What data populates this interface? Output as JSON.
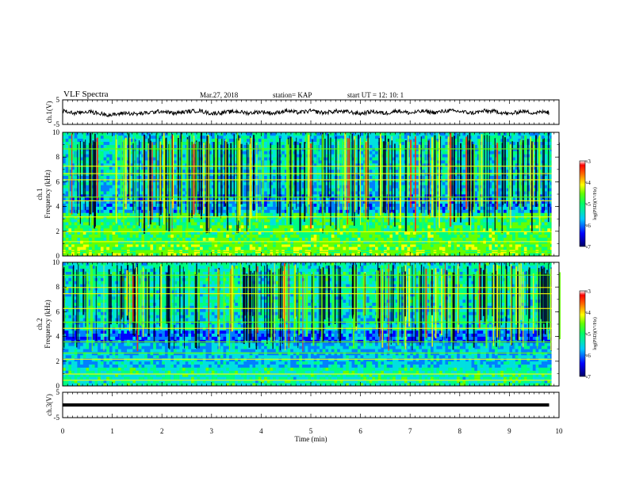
{
  "header": {
    "title": "VLF Spectra",
    "date": "Mar.27, 2018",
    "station": "station= KAP",
    "start": "start  UT =   12: 10: 1"
  },
  "chart_data": [
    {
      "type": "line",
      "ylabel": "ch.1(V)",
      "ylim": [
        -5,
        5
      ],
      "yticks": [
        5,
        -5
      ],
      "xlim": [
        0,
        10
      ],
      "series": [
        {
          "x": [
            0.0,
            0.25,
            0.5,
            0.75,
            1.0,
            1.25,
            1.5,
            1.75,
            2.0,
            2.25,
            2.5,
            2.75,
            3.0,
            3.25,
            3.5,
            3.75,
            4.0,
            4.25,
            4.5,
            4.75,
            5.0,
            5.25,
            5.5,
            5.75,
            6.0,
            6.25,
            6.5,
            6.75,
            7.0,
            7.25,
            7.5,
            7.75,
            8.0,
            8.25,
            8.5,
            8.75,
            9.0,
            9.25,
            9.5,
            9.75,
            9.8
          ],
          "values": [
            0.5,
            -0.5,
            0.3,
            -0.6,
            -1.2,
            -0.3,
            -0.8,
            -0.2,
            0.4,
            -0.5,
            0.2,
            0.6,
            -0.6,
            -0.1,
            0.3,
            -0.4,
            0.2,
            -0.5,
            0.6,
            -0.2,
            0.5,
            -0.3,
            0.4,
            0.1,
            -0.6,
            0.3,
            -0.5,
            0.6,
            -0.4,
            0.4,
            -0.2,
            0.6,
            0.3,
            -0.4,
            0.5,
            0.2,
            -0.8,
            0.4,
            -0.3,
            0.2,
            -0.2
          ]
        }
      ]
    },
    {
      "type": "heatmap",
      "label": "ch.1",
      "ylabel": "Frequency (kHz)",
      "ylim": [
        0,
        10
      ],
      "yticks": [
        0,
        2,
        4,
        6,
        8,
        10
      ],
      "xlim": [
        0,
        10
      ],
      "colorbar": {
        "label": "log(PSD)(V²/Hz)",
        "range": [
          -7,
          -3
        ],
        "ticks": [
          -3,
          -4,
          -5,
          -6,
          -7
        ]
      }
    },
    {
      "type": "heatmap",
      "label": "ch.2",
      "ylabel": "Frequency (kHz)",
      "ylim": [
        0,
        10
      ],
      "yticks": [
        0,
        2,
        4,
        6,
        8,
        10
      ],
      "xlim": [
        0,
        10
      ],
      "colorbar": {
        "label": "log(PSD)(V²/Hz)",
        "range": [
          -7,
          -3
        ],
        "ticks": [
          -3,
          -4,
          -5,
          -6,
          -7
        ]
      }
    },
    {
      "type": "line",
      "ylabel": "ch.3(V)",
      "ylim": [
        -5,
        5
      ],
      "yticks": [
        5,
        -5
      ],
      "xlim": [
        0,
        10
      ],
      "series": [
        {
          "x": [
            0,
            9.8
          ],
          "values": [
            0,
            0
          ]
        }
      ]
    }
  ],
  "xaxis": {
    "label": "Time (min)",
    "ticks": [
      0,
      1,
      2,
      3,
      4,
      5,
      6,
      7,
      8,
      9,
      10
    ]
  },
  "colors": {
    "colormap": [
      "#000066",
      "#0000ff",
      "#0080ff",
      "#00e0e0",
      "#00ff80",
      "#66ff00",
      "#ffff00",
      "#ff8000",
      "#ff0000",
      "#ffffff"
    ]
  }
}
